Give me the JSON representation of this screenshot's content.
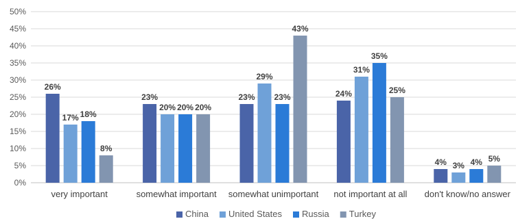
{
  "chart_data": {
    "type": "bar",
    "categories": [
      "very important",
      "somewhat important",
      "somewhat unimportant",
      "not important at all",
      "don't know/no answer"
    ],
    "series": [
      {
        "name": "China",
        "color": "#4A64A8",
        "values": [
          26,
          23,
          23,
          24,
          4
        ]
      },
      {
        "name": "United States",
        "color": "#6FA1D8",
        "values": [
          17,
          20,
          29,
          31,
          3
        ]
      },
      {
        "name": "Russia",
        "color": "#2B7BD7",
        "values": [
          18,
          20,
          23,
          35,
          4
        ]
      },
      {
        "name": "Turkey",
        "color": "#8295B0",
        "values": [
          8,
          20,
          43,
          25,
          5
        ]
      }
    ],
    "value_suffix": "%",
    "ylim": [
      0,
      50
    ],
    "y_ticks": [
      0,
      5,
      10,
      15,
      20,
      25,
      30,
      35,
      40,
      45,
      50
    ],
    "grid": true,
    "legend_position": "bottom",
    "title": "",
    "xlabel": "",
    "ylabel": ""
  }
}
